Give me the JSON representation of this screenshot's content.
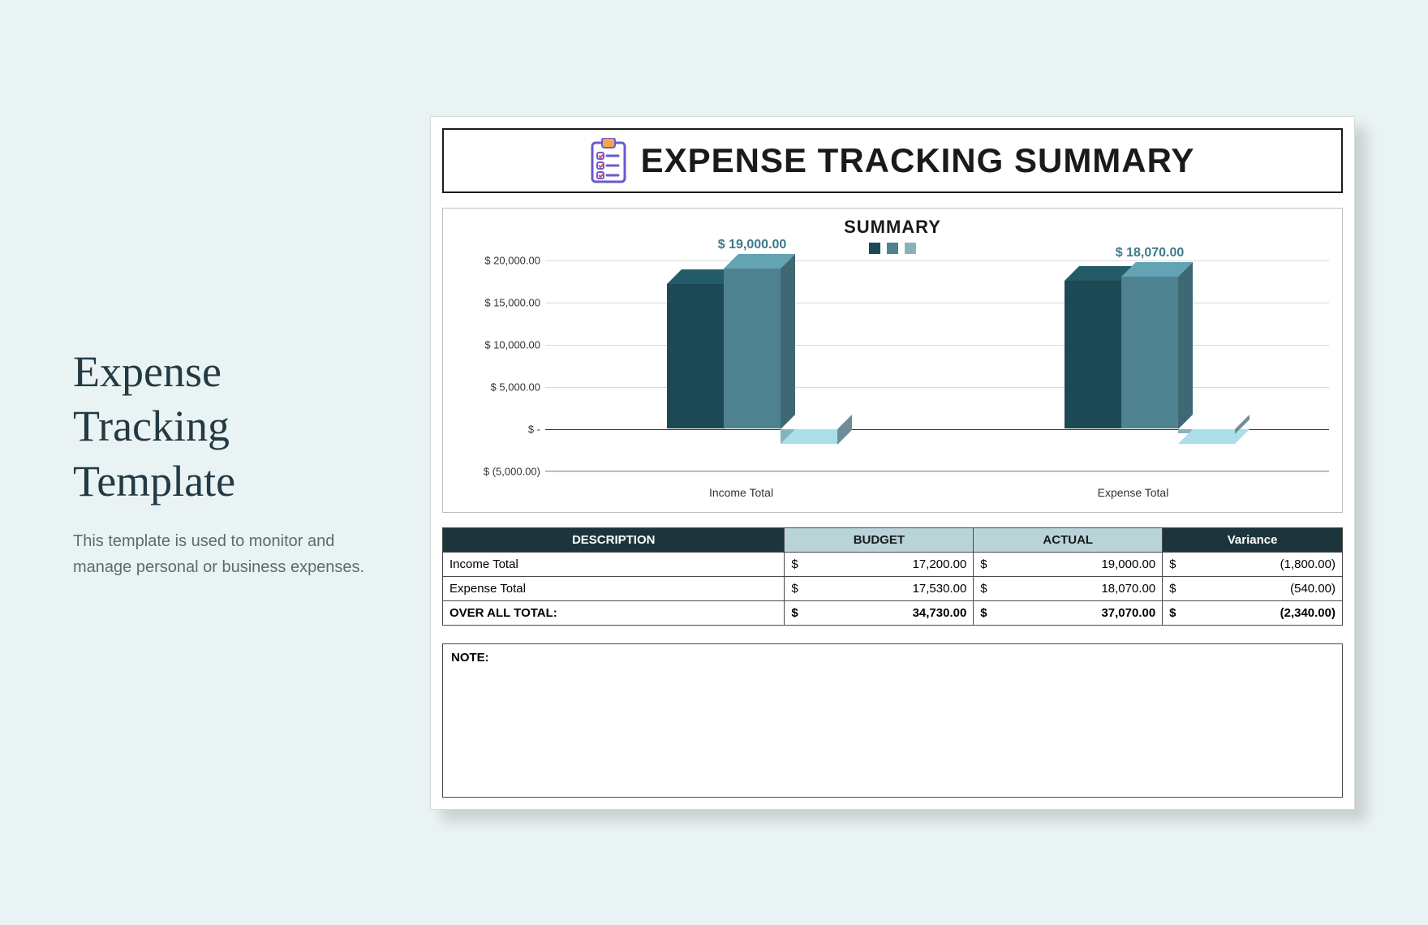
{
  "left": {
    "title_line1": "Expense",
    "title_line2": "Tracking",
    "title_line3": "Template",
    "description": "This template is used to monitor and manage personal or business expenses."
  },
  "sheet": {
    "header_title": "EXPENSE TRACKING SUMMARY",
    "chart": {
      "title": "SUMMARY",
      "type": "bar-3d",
      "series_colors": [
        "#1c4954",
        "#4e8290",
        "#88b2bb"
      ],
      "groups": [
        {
          "name": "Income Total",
          "value_label": "$ 19,000.00",
          "values": [
            17200,
            19000,
            -1800
          ]
        },
        {
          "name": "Expense Total",
          "value_label": "$ 18,070.00",
          "values": [
            17530,
            18070,
            -540
          ]
        }
      ],
      "y_ticks": [
        {
          "v": -5000,
          "label": "$ (5,000.00)"
        },
        {
          "v": 0,
          "label": "$ -"
        },
        {
          "v": 5000,
          "label": "$ 5,000.00"
        },
        {
          "v": 10000,
          "label": "$ 10,000.00"
        },
        {
          "v": 15000,
          "label": "$ 15,000.00"
        },
        {
          "v": 20000,
          "label": "$ 20,000.00"
        }
      ],
      "y_min": -5000,
      "y_max": 20000,
      "background_color": "#ffffff",
      "grid_color": "#d9d9d9"
    },
    "table": {
      "columns": [
        "DESCRIPTION",
        "BUDGET",
        "ACTUAL",
        "Variance"
      ],
      "rows": [
        {
          "desc": "Income Total",
          "budget": "17,200.00",
          "actual": "19,000.00",
          "variance": "(1,800.00)"
        },
        {
          "desc": "Expense Total",
          "budget": "17,530.00",
          "actual": "18,070.00",
          "variance": "(540.00)"
        }
      ],
      "total_row": {
        "desc": "OVER ALL TOTAL:",
        "budget": "34,730.00",
        "actual": "37,070.00",
        "variance": "(2,340.00)"
      },
      "currency": "$",
      "header_dark_bg": "#1c353d",
      "header_light_bg": "#b9d4d8"
    },
    "note_label": "NOTE:"
  }
}
